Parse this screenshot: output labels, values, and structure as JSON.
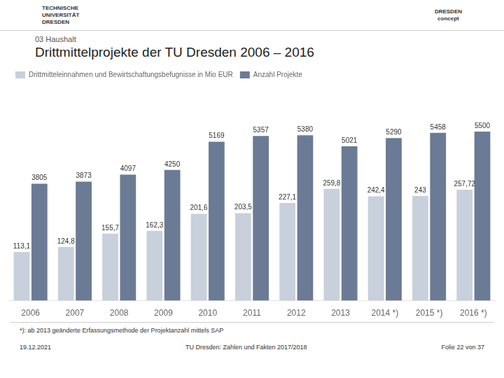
{
  "chart_data": {
    "type": "bar",
    "title": "Drittmittelprojekte der TU Dresden 2006 – 2016",
    "subtitle": "03  Haushalt",
    "annotations": [
      "TECHNISCHE\nUNIVERSITÄT\nDRESDEN",
      "DRESDEN\nconcept",
      "*): ab 2013 geänderte Erfassungsmethode der Projektanzahl mittels SAP",
      "19.12.2021",
      "TU Dresden: Zahlen und Fakten 2017/2018",
      "Folie 22 von 37"
    ],
    "categories": [
      "2006",
      "2007",
      "2008",
      "2009",
      "2010",
      "2011",
      "2012",
      "2013",
      "2014 *)",
      "2015 *)",
      "2016 *)"
    ],
    "series": [
      {
        "name": "Drittmitteleinnahmen und Bewirtschaftungsbefugnisse in Mio EUR",
        "color": "#c8d0dc",
        "values": [
          113.1,
          124.8,
          155.7,
          162.3,
          201.6,
          203.5,
          227.1,
          259.8,
          242.4,
          243.0,
          257.72
        ],
        "value_labels": [
          "113,1",
          "124,8",
          "155,7",
          "162,3",
          "201,6",
          "203,5",
          "227,1",
          "259,8",
          "242,4",
          "243",
          "257,72"
        ]
      },
      {
        "name": "Anzahl Projekte",
        "color": "#6b7b96",
        "axis": "y2",
        "values": [
          3805,
          3873,
          4097,
          4250,
          5169,
          5357,
          5380,
          5021,
          5290,
          5458,
          5500
        ]
      }
    ],
    "ylim": [
      0,
      500
    ],
    "y2lim": [
      0,
      7000
    ],
    "grid": false,
    "legend": "upper left",
    "data_labels": true,
    "tick_labels": "x"
  }
}
